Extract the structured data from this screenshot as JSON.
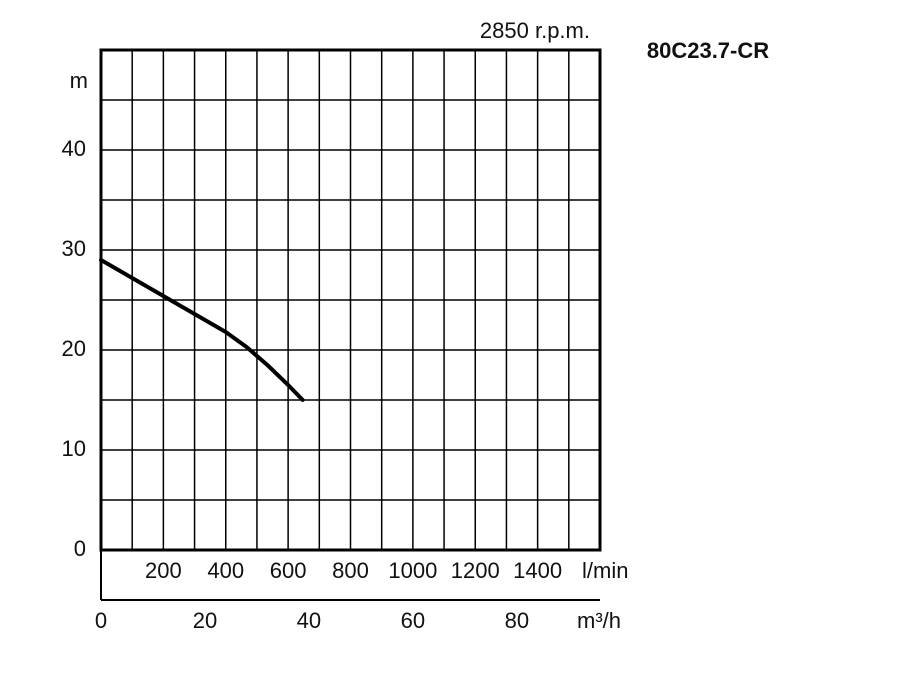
{
  "chart_data": {
    "type": "line",
    "title": "80C23.7-CR",
    "subtitle": "2850 r.p.m.",
    "y_label": "m",
    "x_label": "m³/h",
    "x2_label": "l/min",
    "xlim": [
      0,
      96
    ],
    "xticks": [
      0,
      20,
      40,
      60,
      80
    ],
    "x2lim": [
      0,
      1600
    ],
    "x2ticks": [
      200,
      400,
      600,
      800,
      1000,
      1200,
      1400
    ],
    "x2_grid": [
      100,
      200,
      300,
      400,
      500,
      600,
      700,
      800,
      900,
      1000,
      1100,
      1200,
      1300,
      1400,
      1500
    ],
    "ylim": [
      0,
      50
    ],
    "yticks": [
      0,
      10,
      20,
      30,
      40
    ],
    "y_grid": [
      5,
      10,
      15,
      20,
      25,
      30,
      35,
      40,
      45
    ],
    "series": [
      {
        "color": "#000000",
        "x": [
          0,
          6,
          12,
          18,
          24,
          28,
          32,
          36,
          38.8
        ],
        "values": [
          29,
          27.2,
          25.4,
          23.6,
          21.8,
          20.3,
          18.5,
          16.5,
          15
        ]
      }
    ]
  }
}
